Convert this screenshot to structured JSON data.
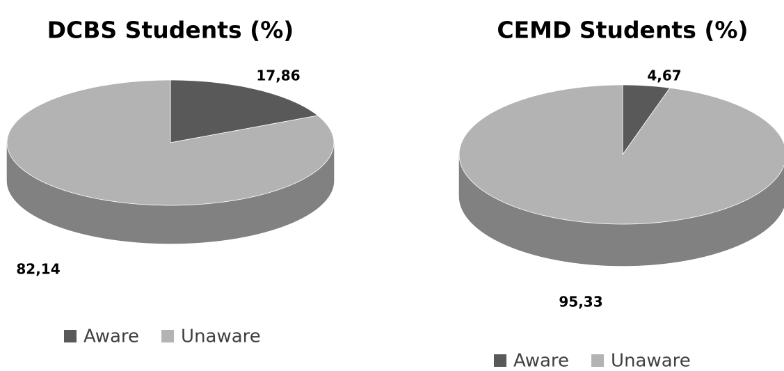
{
  "chart_data": [
    {
      "type": "pie",
      "title": "DCBS Students (%)",
      "categories": [
        "Aware",
        "Unaware"
      ],
      "values": [
        17.86,
        82.14
      ],
      "value_labels": [
        "17,86",
        "82,14"
      ],
      "colors": [
        "#595959",
        "#b3b3b3"
      ],
      "legend": "bottom"
    },
    {
      "type": "pie",
      "title": "CEMD Students (%)",
      "categories": [
        "Aware",
        "Unaware"
      ],
      "values": [
        4.67,
        95.33
      ],
      "value_labels": [
        "4,67",
        "95,33"
      ],
      "colors": [
        "#595959",
        "#b3b3b3"
      ],
      "legend": "bottom"
    }
  ]
}
